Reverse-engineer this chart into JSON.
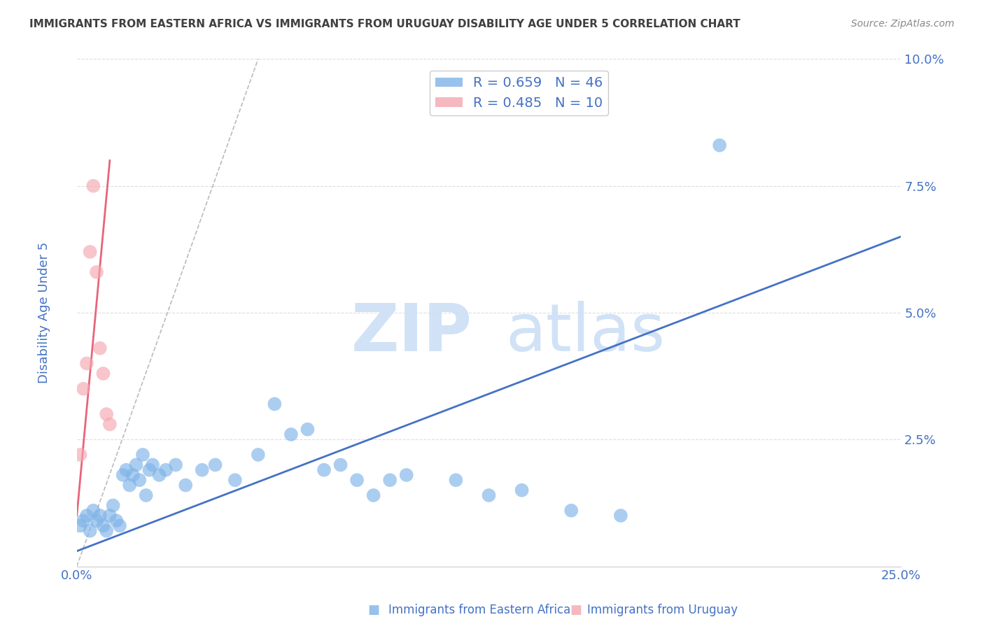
{
  "title": "IMMIGRANTS FROM EASTERN AFRICA VS IMMIGRANTS FROM URUGUAY DISABILITY AGE UNDER 5 CORRELATION CHART",
  "source": "Source: ZipAtlas.com",
  "xlabel_blue": "Immigrants from Eastern Africa",
  "xlabel_pink": "Immigrants from Uruguay",
  "ylabel": "Disability Age Under 5",
  "xmin": 0.0,
  "xmax": 0.25,
  "ymin": 0.0,
  "ymax": 0.1,
  "xticks": [
    0.0,
    0.05,
    0.1,
    0.15,
    0.2,
    0.25
  ],
  "xtick_labels": [
    "0.0%",
    "",
    "",
    "",
    "",
    "25.0%"
  ],
  "yticks": [
    0.0,
    0.025,
    0.05,
    0.075,
    0.1
  ],
  "ytick_labels": [
    "",
    "2.5%",
    "5.0%",
    "7.5%",
    "10.0%"
  ],
  "legend_blue_R": "0.659",
  "legend_blue_N": "46",
  "legend_pink_R": "0.485",
  "legend_pink_N": "10",
  "blue_color": "#7FB3E8",
  "pink_color": "#F4A7B0",
  "trendline_blue_color": "#4472C4",
  "trendline_pink_color": "#E8647A",
  "trendline_dashed_color": "#BBBBBB",
  "text_color": "#4472C4",
  "title_color": "#404040",
  "blue_points": [
    [
      0.001,
      0.008
    ],
    [
      0.002,
      0.009
    ],
    [
      0.003,
      0.01
    ],
    [
      0.004,
      0.007
    ],
    [
      0.005,
      0.011
    ],
    [
      0.006,
      0.009
    ],
    [
      0.007,
      0.01
    ],
    [
      0.008,
      0.008
    ],
    [
      0.009,
      0.007
    ],
    [
      0.01,
      0.01
    ],
    [
      0.011,
      0.012
    ],
    [
      0.012,
      0.009
    ],
    [
      0.013,
      0.008
    ],
    [
      0.014,
      0.018
    ],
    [
      0.015,
      0.019
    ],
    [
      0.016,
      0.016
    ],
    [
      0.017,
      0.018
    ],
    [
      0.018,
      0.02
    ],
    [
      0.019,
      0.017
    ],
    [
      0.02,
      0.022
    ],
    [
      0.021,
      0.014
    ],
    [
      0.022,
      0.019
    ],
    [
      0.023,
      0.02
    ],
    [
      0.025,
      0.018
    ],
    [
      0.027,
      0.019
    ],
    [
      0.03,
      0.02
    ],
    [
      0.033,
      0.016
    ],
    [
      0.038,
      0.019
    ],
    [
      0.042,
      0.02
    ],
    [
      0.048,
      0.017
    ],
    [
      0.055,
      0.022
    ],
    [
      0.06,
      0.032
    ],
    [
      0.065,
      0.026
    ],
    [
      0.07,
      0.027
    ],
    [
      0.075,
      0.019
    ],
    [
      0.08,
      0.02
    ],
    [
      0.085,
      0.017
    ],
    [
      0.09,
      0.014
    ],
    [
      0.095,
      0.017
    ],
    [
      0.1,
      0.018
    ],
    [
      0.115,
      0.017
    ],
    [
      0.125,
      0.014
    ],
    [
      0.135,
      0.015
    ],
    [
      0.15,
      0.011
    ],
    [
      0.165,
      0.01
    ],
    [
      0.195,
      0.083
    ]
  ],
  "pink_points": [
    [
      0.001,
      0.022
    ],
    [
      0.002,
      0.035
    ],
    [
      0.003,
      0.04
    ],
    [
      0.004,
      0.062
    ],
    [
      0.005,
      0.075
    ],
    [
      0.006,
      0.058
    ],
    [
      0.007,
      0.043
    ],
    [
      0.008,
      0.038
    ],
    [
      0.009,
      0.03
    ],
    [
      0.01,
      0.028
    ]
  ],
  "blue_trendline_x": [
    0.0,
    0.25
  ],
  "blue_trendline_y": [
    0.003,
    0.065
  ],
  "pink_trendline_x": [
    0.0,
    0.01
  ],
  "pink_trendline_y": [
    0.01,
    0.08
  ],
  "dashed_trendline_x": [
    0.0,
    0.055
  ],
  "dashed_trendline_y": [
    0.0,
    0.1
  ],
  "watermark_zip": "ZIP",
  "watermark_atlas": "atlas",
  "bg_color": "#FFFFFF",
  "grid_color": "#DDDDDD",
  "source_color": "#888888"
}
